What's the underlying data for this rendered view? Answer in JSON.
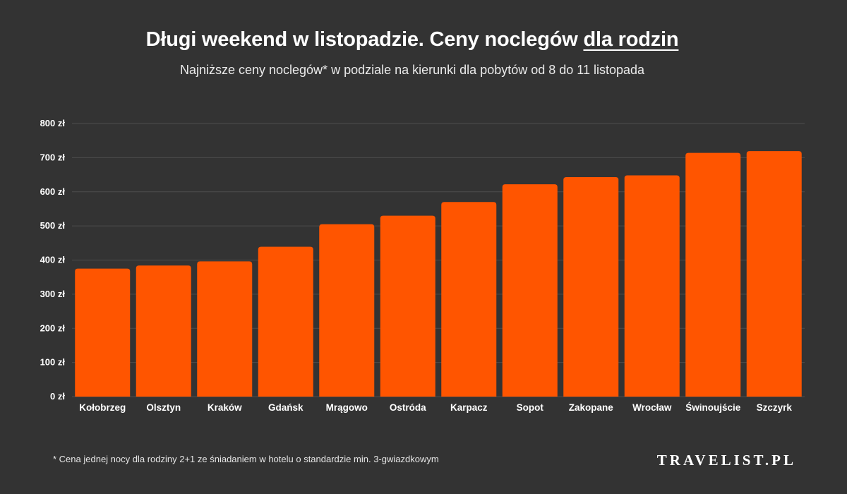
{
  "header": {
    "title_main": "Długi weekend w listopadzie. Ceny noclegów",
    "title_emphasis": "dla rodzin",
    "subtitle": "Najniższe ceny noclegów* w podziale na kierunki dla pobytów od 8 do 11 listopada"
  },
  "chart_data": {
    "type": "bar",
    "title": "Długi weekend w listopadzie. Ceny noclegów dla rodzin",
    "subtitle": "Najniższe ceny noclegów* w podziale na kierunki dla pobytów od 8 do 11 listopada",
    "categories": [
      "Kołobrzeg",
      "Olsztyn",
      "Kraków",
      "Gdańsk",
      "Mrągowo",
      "Ostróda",
      "Karpacz",
      "Sopot",
      "Zakopane",
      "Wrocław",
      "Świnoujście",
      "Szczyrk"
    ],
    "values": [
      375,
      384,
      396,
      439,
      505,
      530,
      570,
      622,
      643,
      648,
      714,
      719
    ],
    "ylim": [
      0,
      800
    ],
    "yticks": [
      0,
      100,
      200,
      300,
      400,
      500,
      600,
      700,
      800
    ],
    "ytick_labels": [
      "0 zł",
      "100 zł",
      "200 zł",
      "300 zł",
      "400 zł",
      "500 zł",
      "600 zł",
      "700 zł",
      "800 zł"
    ],
    "xlabel": "",
    "ylabel": "",
    "grid": true,
    "bar_color": "#FF5500",
    "background_color": "#333333"
  },
  "footer": {
    "footnote": "* Cena jednej nocy dla rodziny 2+1 ze śniadaniem w hotelu o standardzie min. 3-gwiazdkowym",
    "brand": "TRAVELIST.PL"
  }
}
